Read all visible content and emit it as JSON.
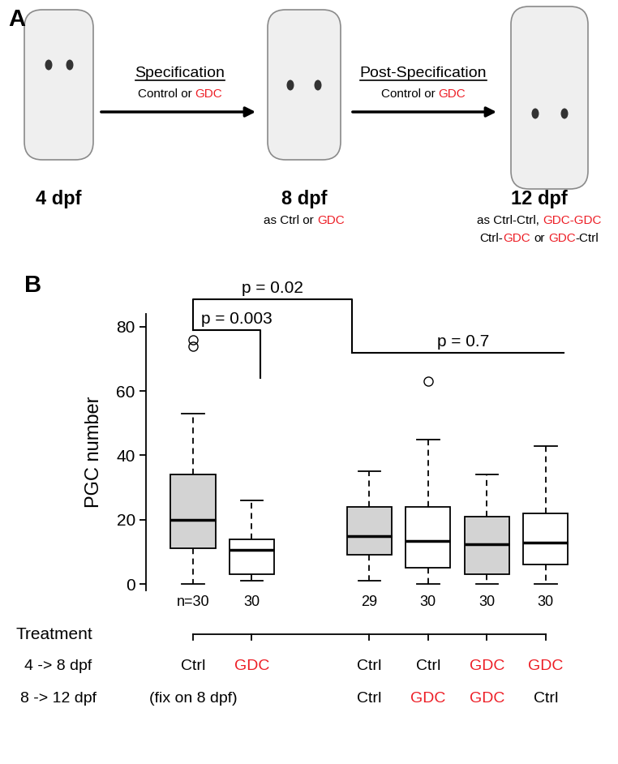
{
  "panel_a": {
    "label": "A",
    "stages": [
      {
        "title": "4 dpf",
        "caption": []
      },
      {
        "title": "8 dpf",
        "caption": [
          [
            {
              "text": "as Ctrl or ",
              "color": "#000000"
            },
            {
              "text": "GDC",
              "color": "#ed1c24"
            }
          ]
        ]
      },
      {
        "title": "12 dpf",
        "caption": [
          [
            {
              "text": "as Ctrl-Ctrl, ",
              "color": "#000000"
            },
            {
              "text": "GDC-GDC",
              "color": "#ed1c24"
            }
          ],
          [
            {
              "text": "Ctrl-",
              "color": "#000000"
            },
            {
              "text": "GDC",
              "color": "#ed1c24"
            },
            {
              "text": " or ",
              "color": "#000000"
            },
            {
              "text": "GDC",
              "color": "#ed1c24"
            },
            {
              "text": "-Ctrl",
              "color": "#000000"
            }
          ]
        ]
      }
    ],
    "steps": [
      {
        "title": "Specification",
        "caption": [
          {
            "text": "Control or ",
            "color": "#000000"
          },
          {
            "text": "GDC",
            "color": "#ed1c24"
          }
        ]
      },
      {
        "title": "Post-Specification",
        "caption": [
          {
            "text": "Control or ",
            "color": "#000000"
          },
          {
            "text": "GDC",
            "color": "#ed1c24"
          }
        ]
      }
    ]
  },
  "chart_data": {
    "type": "box",
    "panel_label": "B",
    "ylabel": "PGC number",
    "ylim": [
      -2,
      84
    ],
    "yticks": [
      0,
      20,
      40,
      60,
      80
    ],
    "categories": [
      "n=30",
      "30",
      null,
      "29",
      "30",
      "30",
      "30"
    ],
    "boxes": [
      {
        "whislo": 0,
        "q1": 11,
        "med": 20,
        "q3": 34,
        "whishi": 53,
        "fliers": [
          74,
          76
        ]
      },
      {
        "whislo": 1,
        "q1": 3,
        "med": 10.5,
        "q3": 14,
        "whishi": 26,
        "fliers": []
      },
      null,
      {
        "whislo": 1,
        "q1": 9,
        "med": 15,
        "q3": 24,
        "whishi": 35,
        "fliers": []
      },
      {
        "whislo": 0,
        "q1": 5,
        "med": 13.5,
        "q3": 24,
        "whishi": 45,
        "fliers": [
          63
        ]
      },
      {
        "whislo": 0,
        "q1": 3,
        "med": 12.5,
        "q3": 21,
        "whishi": 34,
        "fliers": []
      },
      {
        "whislo": 0,
        "q1": 6,
        "med": 13,
        "q3": 22,
        "whishi": 43,
        "fliers": []
      }
    ],
    "colors": [
      "#d3d3d3",
      "#ffffff",
      null,
      "#d3d3d3",
      "#ffffff",
      "#d3d3d3",
      "#ffffff"
    ],
    "annotations": [
      "p = 0.02",
      "p = 0.003",
      "p = 0.7"
    ],
    "treatment": {
      "title": "Treatment",
      "rows": [
        {
          "label": "4 -> 8 dpf",
          "cells": [
            {
              "text": "Ctrl",
              "color": "#000000"
            },
            {
              "text": "GDC",
              "color": "#ed1c24"
            },
            null,
            {
              "text": "Ctrl",
              "color": "#000000"
            },
            {
              "text": "Ctrl",
              "color": "#000000"
            },
            {
              "text": "GDC",
              "color": "#ed1c24"
            },
            {
              "text": "GDC",
              "color": "#ed1c24"
            }
          ]
        },
        {
          "label": "8 -> 12 dpf",
          "cells": [
            {
              "text": "(fix on 8 dpf)",
              "color": "#000000"
            },
            null,
            null,
            {
              "text": "Ctrl",
              "color": "#000000"
            },
            {
              "text": "GDC",
              "color": "#ed1c24"
            },
            {
              "text": "GDC",
              "color": "#ed1c24"
            },
            {
              "text": "Ctrl",
              "color": "#000000"
            }
          ]
        }
      ]
    }
  }
}
